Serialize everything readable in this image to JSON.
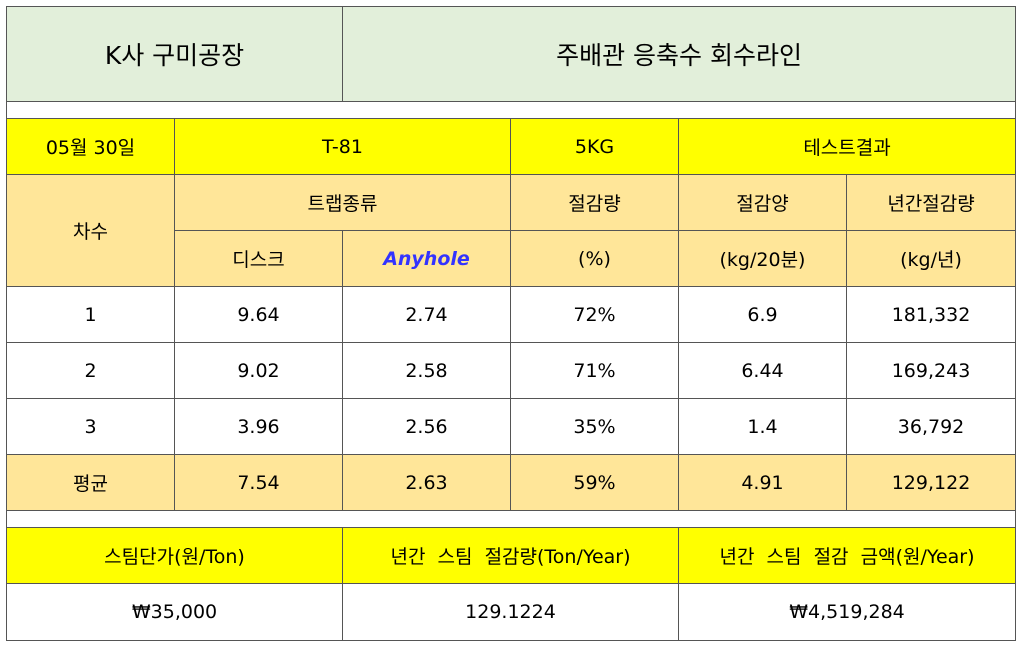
{
  "header": {
    "company": "K사 구미공장",
    "line": "주배관 응축수 회수라인"
  },
  "test_info": {
    "date": "05월 30일",
    "model": "T-81",
    "pressure": "5KG",
    "result_label": "테스트결과"
  },
  "columns": {
    "round": "차수",
    "trap_type": "트랩종류",
    "reduction_rate": "절감량",
    "reduction_amount": "절감양",
    "annual_reduction": "년간절감량",
    "disc": "디스크",
    "anyhole": "Anyhole",
    "unit_percent": "(%)",
    "unit_kg20": "(kg/20분)",
    "unit_kg_year": "(kg/년)"
  },
  "rows": [
    {
      "round": "1",
      "disc": "9.64",
      "anyhole": "2.74",
      "rate": "72%",
      "amount": "6.9",
      "annual": "181,332"
    },
    {
      "round": "2",
      "disc": "9.02",
      "anyhole": "2.58",
      "rate": "71%",
      "amount": "6.44",
      "annual": "169,243"
    },
    {
      "round": "3",
      "disc": "3.96",
      "anyhole": "2.56",
      "rate": "35%",
      "amount": "1.4",
      "annual": "36,792"
    }
  ],
  "average": {
    "label": "평균",
    "disc": "7.54",
    "anyhole": "2.63",
    "rate": "59%",
    "amount": "4.91",
    "annual": "129,122"
  },
  "summary": {
    "steam_price_label": "스팀단가(원/Ton)",
    "annual_steam_label": "년간  스팀  절감량(Ton/Year)",
    "annual_cost_label": "년간  스팀  절감  금액(원/Year)",
    "steam_price": "₩35,000",
    "annual_steam": "129.1224",
    "annual_cost": "₩4,519,284"
  },
  "colors": {
    "header_green": "#e2efda",
    "yellow": "#ffff00",
    "tan": "#ffe699",
    "anyhole_blue": "#3333ff"
  }
}
